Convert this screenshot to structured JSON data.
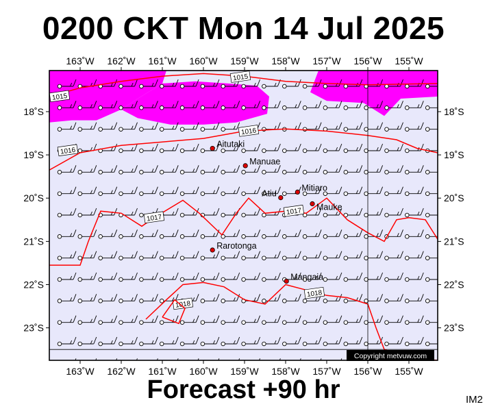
{
  "title": "0200 CKT Mon 14 Jul 2025",
  "subtitle": "Forecast +90 hr",
  "plot_id": "IM2",
  "copyright": "Copyright metvuw.com",
  "colors": {
    "ocean": "#e8e8fb",
    "rain": "#ff00ff",
    "isobar": "#ff0000",
    "frame": "#000000"
  },
  "map": {
    "lon_range": [
      -163.75,
      -154.3
    ],
    "lat_range": [
      -23.75,
      -17.05
    ],
    "lon_ticks": [
      {
        "value": -163,
        "label": "163˚W"
      },
      {
        "value": -162,
        "label": "162˚W"
      },
      {
        "value": -161,
        "label": "161˚W"
      },
      {
        "value": -160,
        "label": "160˚W"
      },
      {
        "value": -159,
        "label": "159˚W"
      },
      {
        "value": -158,
        "label": "158˚W"
      },
      {
        "value": -157,
        "label": "157˚W"
      },
      {
        "value": -156,
        "label": "156˚W"
      },
      {
        "value": -155,
        "label": "155˚W"
      }
    ],
    "lat_ticks": [
      {
        "value": -18,
        "label": "18˚S"
      },
      {
        "value": -19,
        "label": "19˚S"
      },
      {
        "value": -20,
        "label": "20˚S"
      },
      {
        "value": -21,
        "label": "21˚S"
      },
      {
        "value": -22,
        "label": "22˚S"
      },
      {
        "value": -23,
        "label": "23˚S"
      }
    ],
    "reference_lines": {
      "lon": -156,
      "lat": -23.5
    },
    "islands": [
      {
        "name": "Aitutaki",
        "lon": -159.78,
        "lat": -18.85
      },
      {
        "name": "Manuae",
        "lon": -158.98,
        "lat": -19.25
      },
      {
        "name": "Mitiaro",
        "lon": -157.71,
        "lat": -19.86
      },
      {
        "name": "Atiu",
        "lon": -158.12,
        "lat": -19.99
      },
      {
        "name": "Mauke",
        "lon": -157.35,
        "lat": -20.13
      },
      {
        "name": "Rarotonga",
        "lon": -159.78,
        "lat": -21.2
      },
      {
        "name": "Mangaia",
        "lon": -157.98,
        "lat": -21.92
      }
    ],
    "isobars": [
      {
        "label": "1015",
        "points": [
          [
            -163.75,
            -17.65
          ],
          [
            -163.0,
            -17.45
          ],
          [
            -162.0,
            -17.3
          ],
          [
            -161.0,
            -17.18
          ],
          [
            -160.0,
            -17.12
          ],
          [
            -159.0,
            -17.18
          ],
          [
            -158.0,
            -17.3
          ],
          [
            -157.0,
            -17.35
          ],
          [
            -156.0,
            -17.38
          ],
          [
            -155.0,
            -17.36
          ],
          [
            -154.3,
            -17.35
          ]
        ]
      },
      {
        "label": "1016",
        "points": [
          [
            -163.75,
            -19.35
          ],
          [
            -163.0,
            -18.95
          ],
          [
            -162.0,
            -18.78
          ],
          [
            -161.0,
            -18.7
          ],
          [
            -160.0,
            -18.62
          ],
          [
            -159.0,
            -18.45
          ],
          [
            -158.0,
            -18.4
          ],
          [
            -157.0,
            -18.45
          ],
          [
            -156.0,
            -18.55
          ],
          [
            -155.3,
            -18.65
          ],
          [
            -154.8,
            -18.85
          ],
          [
            -154.3,
            -18.95
          ]
        ]
      },
      {
        "label": "1017",
        "points": [
          [
            -163.75,
            -21.55
          ],
          [
            -163.0,
            -21.55
          ],
          [
            -162.8,
            -21.0
          ],
          [
            -162.5,
            -20.3
          ],
          [
            -162.0,
            -20.35
          ],
          [
            -161.5,
            -20.65
          ],
          [
            -161.2,
            -20.45
          ],
          [
            -160.5,
            -20.05
          ],
          [
            -160.1,
            -20.35
          ],
          [
            -159.55,
            -20.85
          ],
          [
            -159.2,
            -20.35
          ],
          [
            -158.9,
            -20.0
          ],
          [
            -158.5,
            -20.35
          ],
          [
            -158.0,
            -20.3
          ],
          [
            -157.5,
            -20.35
          ],
          [
            -157.0,
            -20.0
          ],
          [
            -156.5,
            -20.5
          ],
          [
            -156.0,
            -20.8
          ],
          [
            -155.6,
            -21.0
          ],
          [
            -155.3,
            -20.5
          ],
          [
            -155.0,
            -20.45
          ],
          [
            -154.6,
            -20.5
          ],
          [
            -154.3,
            -20.95
          ]
        ]
      },
      {
        "label": "1018",
        "points": [
          [
            -161.4,
            -22.8
          ],
          [
            -160.9,
            -22.35
          ],
          [
            -160.5,
            -22.0
          ],
          [
            -160.0,
            -21.95
          ],
          [
            -159.5,
            -22.05
          ],
          [
            -159.0,
            -22.35
          ],
          [
            -158.5,
            -22.45
          ],
          [
            -158.0,
            -22.0
          ],
          [
            -157.6,
            -22.1
          ],
          [
            -157.0,
            -22.25
          ],
          [
            -156.5,
            -22.3
          ],
          [
            -156.0,
            -22.45
          ],
          [
            -155.8,
            -23.0
          ],
          [
            -155.6,
            -23.5
          ],
          [
            -155.0,
            -23.7
          ],
          [
            -154.3,
            -23.75
          ]
        ]
      },
      {
        "label": "",
        "points": [
          [
            -161.0,
            -22.75
          ],
          [
            -160.6,
            -22.9
          ],
          [
            -160.45,
            -22.55
          ],
          [
            -160.7,
            -22.35
          ],
          [
            -161.0,
            -22.75
          ]
        ]
      }
    ],
    "rain_areas": [
      [
        [
          -163.75,
          -17.05
        ],
        [
          -160.9,
          -17.05
        ],
        [
          -161.0,
          -17.35
        ],
        [
          -161.6,
          -17.7
        ],
        [
          -162.0,
          -17.95
        ],
        [
          -162.6,
          -18.2
        ],
        [
          -163.2,
          -18.2
        ],
        [
          -163.75,
          -18.25
        ]
      ],
      [
        [
          -161.0,
          -17.35
        ],
        [
          -160.2,
          -17.3
        ],
        [
          -159.4,
          -17.35
        ],
        [
          -158.7,
          -17.4
        ],
        [
          -158.4,
          -17.65
        ],
        [
          -158.45,
          -18.05
        ],
        [
          -159.2,
          -18.25
        ],
        [
          -160.0,
          -18.3
        ],
        [
          -160.8,
          -18.3
        ],
        [
          -161.6,
          -18.15
        ],
        [
          -162.0,
          -17.95
        ],
        [
          -161.6,
          -17.7
        ]
      ],
      [
        [
          -157.2,
          -17.05
        ],
        [
          -154.3,
          -17.05
        ],
        [
          -154.3,
          -17.65
        ],
        [
          -155.2,
          -17.7
        ],
        [
          -155.6,
          -18.1
        ],
        [
          -156.1,
          -17.8
        ],
        [
          -157.0,
          -17.75
        ],
        [
          -157.4,
          -17.55
        ]
      ]
    ],
    "wind_flow_deg": 100
  }
}
